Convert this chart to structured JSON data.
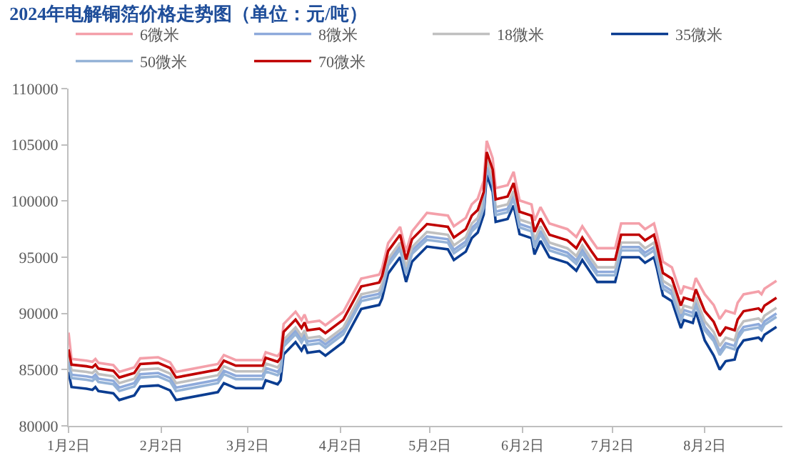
{
  "chart_data": {
    "type": "line",
    "title": "2024年电解铜箔价格走势图（单位：元/吨）",
    "legend": "top",
    "grid": false,
    "marker": "none",
    "line_style": "solid",
    "x": [
      "2024-01-02",
      "2024-01-03",
      "2024-01-08",
      "2024-01-10",
      "2024-01-11",
      "2024-01-12",
      "2024-01-17",
      "2024-01-19",
      "2024-01-24",
      "2024-01-26",
      "2024-02-01",
      "2024-02-05",
      "2024-02-07",
      "2024-02-21",
      "2024-02-23",
      "2024-02-27",
      "2024-03-07",
      "2024-03-08",
      "2024-03-12",
      "2024-03-13",
      "2024-03-14",
      "2024-03-18",
      "2024-03-20",
      "2024-03-21",
      "2024-03-22",
      "2024-03-26",
      "2024-03-28",
      "2024-04-03",
      "2024-04-09",
      "2024-04-15",
      "2024-04-16",
      "2024-04-18",
      "2024-04-22",
      "2024-04-24",
      "2024-04-26",
      "2024-05-01",
      "2024-05-08",
      "2024-05-10",
      "2024-05-14",
      "2024-05-16",
      "2024-05-18",
      "2024-05-20",
      "2024-05-21",
      "2024-05-23",
      "2024-05-24",
      "2024-05-28",
      "2024-05-30",
      "2024-06-01",
      "2024-06-05",
      "2024-06-06",
      "2024-06-08",
      "2024-06-11",
      "2024-06-17",
      "2024-06-20",
      "2024-06-22",
      "2024-06-25",
      "2024-06-27",
      "2024-07-03",
      "2024-07-05",
      "2024-07-11",
      "2024-07-13",
      "2024-07-16",
      "2024-07-17",
      "2024-07-19",
      "2024-07-22",
      "2024-07-25",
      "2024-07-26",
      "2024-07-29",
      "2024-07-30",
      "2024-08-02",
      "2024-08-05",
      "2024-08-07",
      "2024-08-09",
      "2024-08-12",
      "2024-08-13",
      "2024-08-15",
      "2024-08-20",
      "2024-08-21",
      "2024-08-22",
      "2024-08-26"
    ],
    "series": [
      {
        "name": "6微米",
        "color": "#f4a0aa",
        "values": [
          88300,
          85950,
          85800,
          85700,
          85950,
          85600,
          85400,
          84800,
          85200,
          86000,
          86100,
          85650,
          84800,
          85500,
          86300,
          85850,
          85850,
          86550,
          86200,
          86550,
          89050,
          90150,
          89400,
          89900,
          89200,
          89350,
          88950,
          90150,
          93100,
          93450,
          94050,
          96250,
          97700,
          95500,
          97300,
          98950,
          98700,
          97750,
          98500,
          99700,
          100200,
          101800,
          105350,
          103800,
          101150,
          101400,
          102600,
          100050,
          99700,
          98250,
          99450,
          98000,
          97500,
          96800,
          97750,
          96550,
          95800,
          95800,
          98000,
          98000,
          97500,
          98000,
          97000,
          94600,
          94100,
          91700,
          92400,
          92150,
          93150,
          91700,
          90750,
          89500,
          90250,
          90000,
          90950,
          91700,
          91950,
          91700,
          92200,
          92900
        ]
      },
      {
        "name": "8微米",
        "color": "#8eaadb",
        "values": [
          86000,
          84550,
          84400,
          84300,
          84550,
          84200,
          84000,
          83400,
          83800,
          84600,
          84700,
          84250,
          83400,
          84100,
          84900,
          84450,
          84450,
          85150,
          84800,
          85150,
          87350,
          88450,
          87700,
          88200,
          87500,
          87650,
          87250,
          88450,
          91400,
          91750,
          92350,
          94550,
          96000,
          93800,
          95600,
          96850,
          96600,
          95650,
          96400,
          97600,
          98100,
          99700,
          103250,
          101700,
          99050,
          99300,
          100500,
          97950,
          97600,
          96150,
          97350,
          95900,
          95400,
          94700,
          95650,
          94450,
          93700,
          93700,
          95900,
          95900,
          95400,
          95900,
          94900,
          92500,
          92000,
          89600,
          90300,
          90050,
          91050,
          88800,
          87850,
          86600,
          87350,
          87100,
          88050,
          88800,
          89050,
          88800,
          89300,
          90000
        ]
      },
      {
        "name": "18微米",
        "color": "#c0c0c0",
        "values": [
          86300,
          84950,
          84800,
          84700,
          84950,
          84600,
          84400,
          83800,
          84200,
          85000,
          85100,
          84650,
          83800,
          84500,
          85300,
          84850,
          84850,
          85550,
          85200,
          85550,
          87650,
          88750,
          88000,
          88500,
          87800,
          87950,
          87550,
          88750,
          91700,
          92050,
          92650,
          94850,
          96300,
          94100,
          95900,
          97250,
          97000,
          96050,
          96800,
          98000,
          98500,
          100100,
          103650,
          102100,
          99450,
          99700,
          100900,
          98350,
          98000,
          96550,
          97750,
          96300,
          95800,
          95100,
          96050,
          94850,
          94100,
          94100,
          96300,
          96300,
          95800,
          96300,
          95300,
          92900,
          92400,
          90000,
          90700,
          90450,
          91450,
          89300,
          88350,
          87100,
          87850,
          87600,
          88550,
          89300,
          89550,
          89300,
          89800,
          90500
        ]
      },
      {
        "name": "35微米",
        "color": "#0b3d91",
        "values": [
          84800,
          83450,
          83300,
          83200,
          83450,
          83100,
          82900,
          82300,
          82700,
          83500,
          83600,
          83150,
          82300,
          83000,
          83800,
          83350,
          83350,
          84050,
          83700,
          84050,
          86350,
          87450,
          86700,
          87200,
          86500,
          86650,
          86250,
          87450,
          90400,
          90750,
          91350,
          93550,
          95000,
          92800,
          94600,
          95950,
          95700,
          94750,
          95500,
          96700,
          97200,
          98800,
          102350,
          100800,
          98150,
          98400,
          99600,
          97050,
          96700,
          95250,
          96450,
          95000,
          94500,
          93800,
          94750,
          93550,
          92800,
          92800,
          95000,
          95000,
          94500,
          95000,
          94000,
          91600,
          91100,
          88700,
          89400,
          89150,
          90150,
          87600,
          86250,
          85000,
          85750,
          85900,
          86850,
          87600,
          87850,
          87600,
          88100,
          88800
        ]
      },
      {
        "name": "50微米",
        "color": "#95b3d7",
        "values": [
          85700,
          84250,
          84100,
          84000,
          84250,
          83900,
          83700,
          83100,
          83500,
          84300,
          84400,
          83950,
          83100,
          83800,
          84600,
          84150,
          84150,
          84850,
          84500,
          84850,
          87050,
          88150,
          87400,
          87900,
          87200,
          87350,
          86950,
          88150,
          91100,
          91450,
          92050,
          94250,
          95700,
          93500,
          95300,
          96550,
          96300,
          95350,
          96100,
          97300,
          97800,
          99400,
          102950,
          101400,
          98750,
          99000,
          100200,
          97650,
          97300,
          95850,
          97050,
          95600,
          95100,
          94400,
          95350,
          94150,
          93400,
          93400,
          95600,
          95600,
          95100,
          95600,
          94600,
          92200,
          91700,
          89300,
          90000,
          89750,
          90750,
          88500,
          87550,
          86300,
          87050,
          86800,
          87750,
          88500,
          88750,
          88500,
          89000,
          89700
        ]
      },
      {
        "name": "70微米",
        "color": "#c00000",
        "values": [
          86800,
          85450,
          85300,
          85200,
          85450,
          85100,
          84900,
          84300,
          84700,
          85500,
          85600,
          85150,
          84300,
          85000,
          85800,
          85350,
          85350,
          86050,
          85700,
          86050,
          88350,
          89450,
          88700,
          89200,
          88500,
          88650,
          88250,
          89450,
          92400,
          92750,
          93350,
          95550,
          97000,
          94800,
          96600,
          97950,
          97700,
          96750,
          97500,
          98700,
          99200,
          100800,
          104350,
          102800,
          100150,
          100400,
          101600,
          99050,
          98700,
          97250,
          98450,
          97000,
          96500,
          95800,
          96750,
          95550,
          94800,
          94800,
          97000,
          97000,
          96500,
          97000,
          96000,
          93600,
          93100,
          90700,
          91400,
          91150,
          92150,
          90200,
          89250,
          88000,
          88750,
          88500,
          89450,
          90200,
          90450,
          90200,
          90700,
          91400
        ]
      }
    ],
    "xlim": [
      "2024-01-02",
      "2024-08-28"
    ],
    "xticks": [
      {
        "value": "2024-01-02",
        "label": "1月2日"
      },
      {
        "value": "2024-02-02",
        "label": "2月2日"
      },
      {
        "value": "2024-03-02",
        "label": "3月2日"
      },
      {
        "value": "2024-04-02",
        "label": "4月2日"
      },
      {
        "value": "2024-05-02",
        "label": "5月2日"
      },
      {
        "value": "2024-06-02",
        "label": "6月2日"
      },
      {
        "value": "2024-07-02",
        "label": "7月2日"
      },
      {
        "value": "2024-08-02",
        "label": "8月2日"
      }
    ],
    "ylim": [
      80000,
      110000
    ],
    "yticks": [
      80000,
      85000,
      90000,
      95000,
      100000,
      105000,
      110000
    ]
  }
}
